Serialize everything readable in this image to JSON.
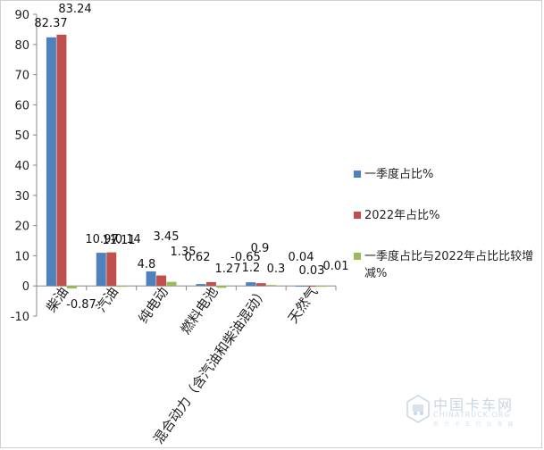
{
  "chart_data": {
    "type": "bar",
    "categories": [
      "柴油",
      "汽油",
      "纯电动",
      "燃料电池",
      "混合动力（含汽油和柴油混动）",
      "天然气"
    ],
    "series": [
      {
        "name": "一季度占比%",
        "values": [
          82.37,
          10.97,
          4.8,
          0.62,
          1.2,
          0.04
        ],
        "labels": [
          "82.37",
          "10.97",
          "4.8",
          "0.62",
          "1.2",
          "0.04"
        ],
        "color": "#4f81bd"
      },
      {
        "name": "2022年占比%",
        "values": [
          83.24,
          11.11,
          3.45,
          1.27,
          0.9,
          0.03
        ],
        "labels": [
          "83.24",
          "11.11",
          "3.45",
          "1.27",
          "0.9",
          "0.03"
        ],
        "color": "#c0504d"
      },
      {
        "name": "一季度占比与2022年占比比较增减%",
        "values": [
          -0.87,
          -0.14,
          1.35,
          -0.65,
          0.3,
          0.01
        ],
        "labels": [
          "-0.87",
          "-0.14",
          "1.35",
          "-0.65",
          "0.3",
          "0.01"
        ],
        "color": "#9bbb59"
      }
    ],
    "ylim": [
      -10,
      90
    ],
    "yticks": [
      -10,
      0,
      10,
      20,
      30,
      40,
      50,
      60,
      70,
      80,
      90
    ],
    "gridlines": false,
    "legend_position": "right"
  },
  "watermark": {
    "name": "中国卡车网",
    "domain": "CHINATRUCK.ORG",
    "slogan": "助 力 卡 车 行 业 发 展"
  }
}
